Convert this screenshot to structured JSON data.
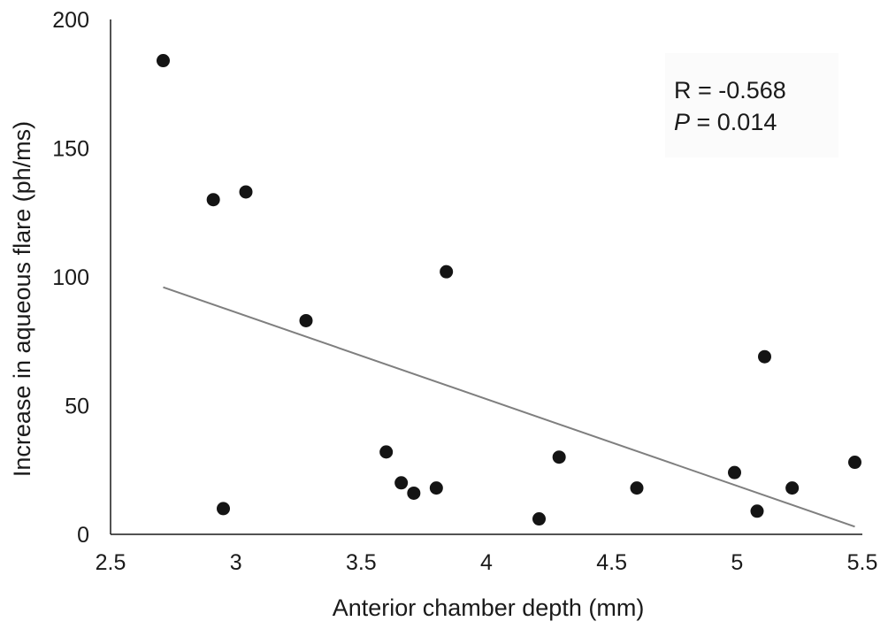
{
  "chart_data": {
    "type": "scatter",
    "title": "",
    "xlabel": "Anterior chamber depth (mm)",
    "ylabel": "Increase  in aqueous flare (ph/ms)",
    "xlim": [
      2.5,
      5.5
    ],
    "ylim": [
      0,
      200
    ],
    "x_ticks": [
      "2.5",
      "3",
      "3.5",
      "4",
      "4.5",
      "5",
      "5.5"
    ],
    "y_ticks": [
      "0",
      "50",
      "100",
      "150",
      "200"
    ],
    "grid": false,
    "legend": "none",
    "series": [
      {
        "points": [
          {
            "x": 2.71,
            "y": 184
          },
          {
            "x": 2.91,
            "y": 130
          },
          {
            "x": 2.95,
            "y": 10
          },
          {
            "x": 3.04,
            "y": 133
          },
          {
            "x": 3.28,
            "y": 83
          },
          {
            "x": 3.6,
            "y": 32
          },
          {
            "x": 3.66,
            "y": 20
          },
          {
            "x": 3.71,
            "y": 16
          },
          {
            "x": 3.8,
            "y": 18
          },
          {
            "x": 3.84,
            "y": 102
          },
          {
            "x": 4.21,
            "y": 6
          },
          {
            "x": 4.29,
            "y": 30
          },
          {
            "x": 4.6,
            "y": 18
          },
          {
            "x": 4.99,
            "y": 24
          },
          {
            "x": 5.08,
            "y": 9
          },
          {
            "x": 5.11,
            "y": 69
          },
          {
            "x": 5.22,
            "y": 18
          },
          {
            "x": 5.47,
            "y": 28
          }
        ]
      }
    ],
    "trendline": {
      "type": "linear",
      "start": {
        "x": 2.71,
        "y": 96
      },
      "end": {
        "x": 5.47,
        "y": 3
      }
    },
    "annotation": {
      "r_line": "R = -0.568",
      "p_symbol": "P",
      "p_value": " = 0.014"
    },
    "colors": {
      "points": "#141414",
      "trendline": "#7f7f7f",
      "axis": "#1a1a1a",
      "annotation_box": "#fbfbfb"
    }
  }
}
